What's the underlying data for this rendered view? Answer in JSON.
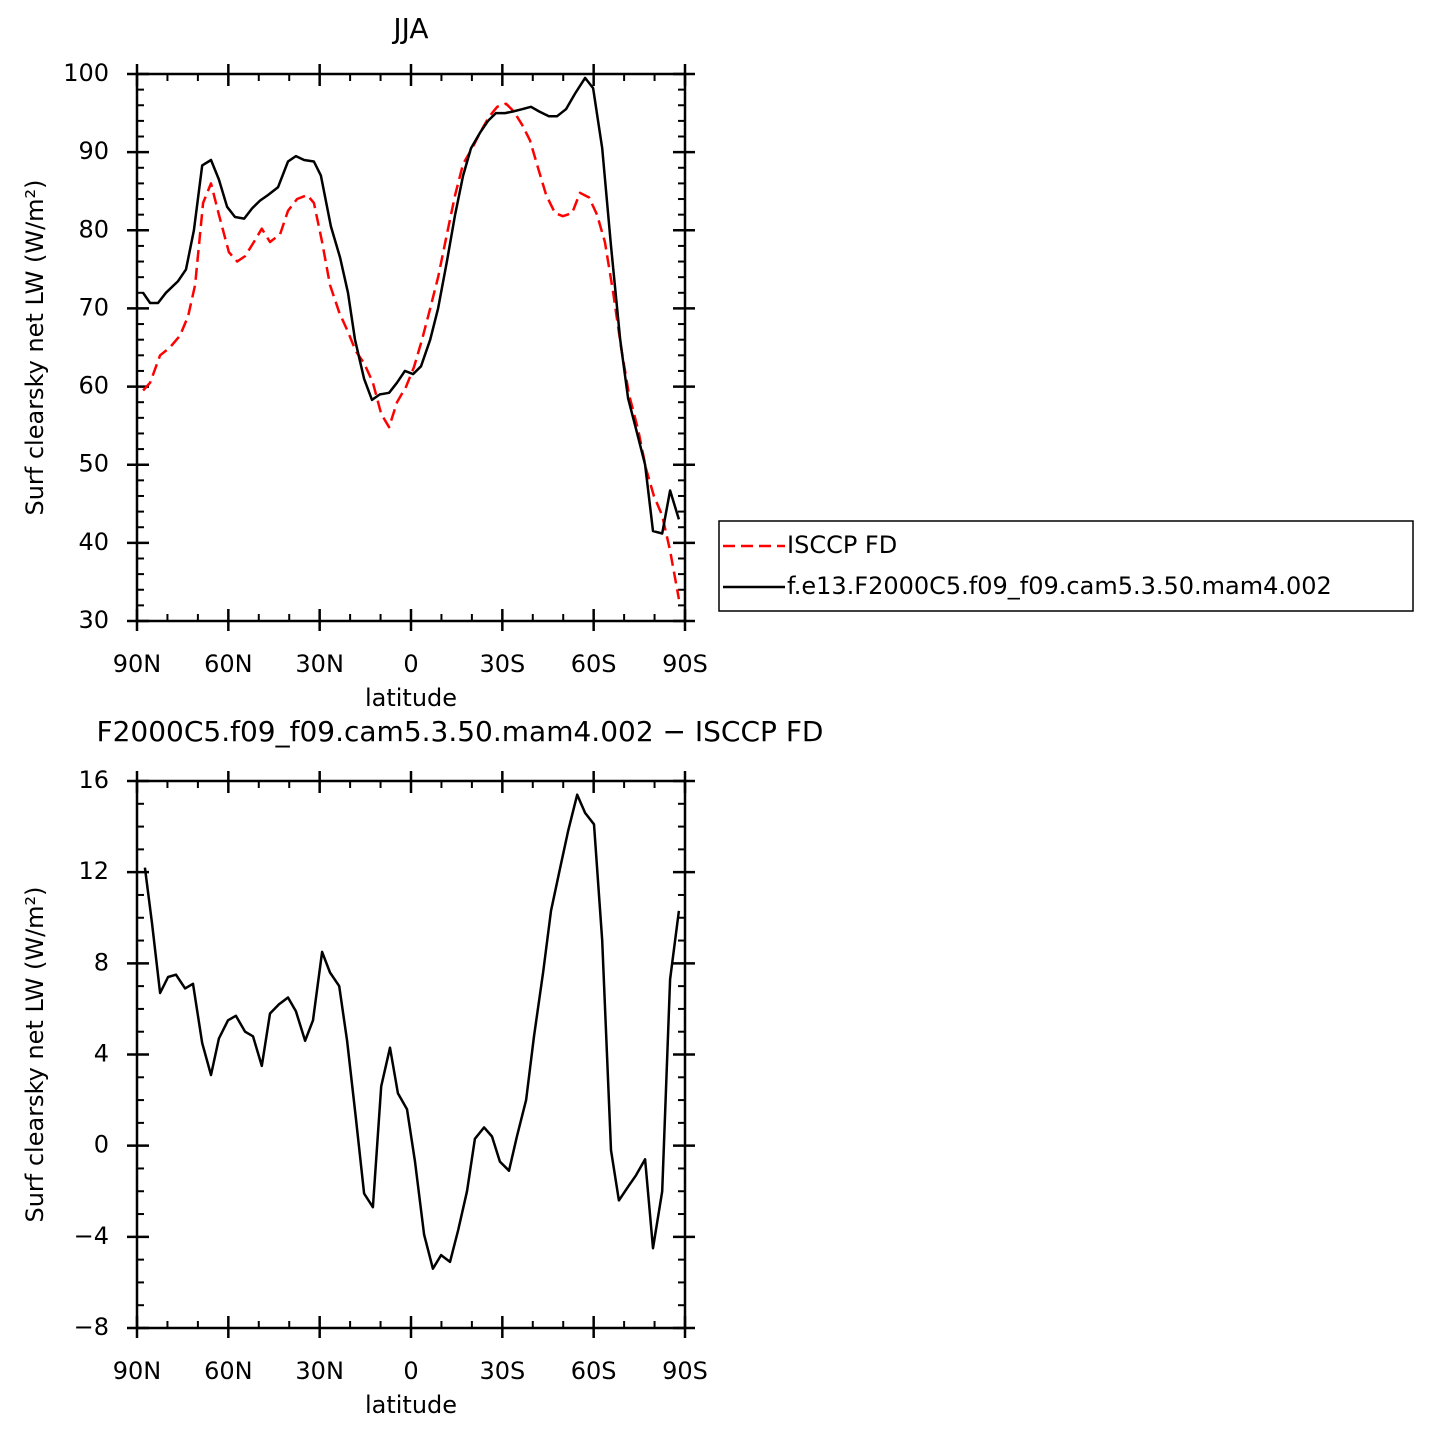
{
  "chart_data": [
    {
      "type": "line",
      "title": "JJA",
      "xlabel": "latitude",
      "ylabel": "Surf clearsky net LW (W/m²)",
      "xlim": [
        90,
        -90
      ],
      "xticks": [
        {
          "value": 90,
          "label": "90N"
        },
        {
          "value": 60,
          "label": "60N"
        },
        {
          "value": 30,
          "label": "30N"
        },
        0,
        {
          "value": -30,
          "label": "30S"
        },
        {
          "value": -60,
          "label": "60S"
        },
        {
          "value": -90,
          "label": "90S"
        }
      ],
      "ylim": [
        30,
        100
      ],
      "yticks": [
        30,
        40,
        50,
        60,
        70,
        80,
        90,
        100
      ],
      "legend_position": "right",
      "series": [
        {
          "name": "ISCCP FD",
          "color": "#ff0000",
          "dash": true,
          "x": [
            88.0,
            85.7,
            82.4,
            79.2,
            75.9,
            73.2,
            70.9,
            68.3,
            65.7,
            63.1,
            59.8,
            57.1,
            54.5,
            51.6,
            49.0,
            46.3,
            43.0,
            40.4,
            37.4,
            34.1,
            31.9,
            29.2,
            26.6,
            23.6,
            20.7,
            18.1,
            15.4,
            12.5,
            9.8,
            7.2,
            4.6,
            1.6,
            -1.0,
            -3.6,
            -6.3,
            -8.9,
            -11.8,
            -14.5,
            -17.1,
            -20.1,
            -22.7,
            -25.6,
            -28.3,
            -31.2,
            -33.8,
            -36.5,
            -39.1,
            -41.7,
            -44.4,
            -47.3,
            -49.9,
            -52.9,
            -55.5,
            -58.5,
            -61.1,
            -63.7,
            -66.4,
            -69.0,
            -71.6,
            -74.6,
            -77.2,
            -79.8,
            -82.5,
            -85.1,
            -88.0
          ],
          "values": [
            59.5,
            60.5,
            64,
            65,
            66.5,
            69,
            73,
            83.5,
            86,
            82,
            77.2,
            76,
            76.7,
            78.5,
            80.2,
            78.5,
            79.5,
            82.5,
            84,
            84.5,
            83.5,
            78.5,
            73,
            69.5,
            67,
            64.5,
            63,
            60.5,
            56.5,
            54.8,
            58,
            60,
            62.5,
            66,
            70,
            74,
            79.5,
            84.5,
            88.5,
            90.5,
            92.5,
            94.5,
            95.8,
            96.2,
            95.2,
            93.5,
            91.5,
            88,
            84.5,
            82.2,
            81.8,
            82.2,
            84.8,
            84.2,
            82,
            78.5,
            72,
            65,
            59,
            54.5,
            49.5,
            46,
            43.5,
            39,
            32.8
          ]
        },
        {
          "name": "f.e13.F2000C5.f09_f09.cam5.3.50.mam4.002",
          "color": "#000000",
          "dash": false,
          "x": [
            88.0,
            85.7,
            83.1,
            80.5,
            76.5,
            73.9,
            71.3,
            68.6,
            65.7,
            63.1,
            60.4,
            57.8,
            54.8,
            52.2,
            49.6,
            47.0,
            43.7,
            40.4,
            37.8,
            35.1,
            31.9,
            29.6,
            26.3,
            23.3,
            20.7,
            18.4,
            15.4,
            12.8,
            10.2,
            7.2,
            4.6,
            2.0,
            -0.7,
            -3.3,
            -6.3,
            -8.9,
            -11.8,
            -14.5,
            -17.1,
            -19.7,
            -22.7,
            -25.3,
            -27.9,
            -30.9,
            -33.5,
            -36.5,
            -39.4,
            -42.1,
            -45.3,
            -48.0,
            -50.9,
            -53.9,
            -57.2,
            -59.8,
            -62.8,
            -65.7,
            -68.7,
            -71.3,
            -74.3,
            -76.9,
            -79.5,
            -82.5,
            -85.1,
            -88.0
          ],
          "values": [
            72,
            70.7,
            70.7,
            72,
            73.5,
            75,
            80,
            88.3,
            89,
            86.5,
            83,
            81.7,
            81.5,
            82.8,
            83.8,
            84.5,
            85.5,
            88.8,
            89.5,
            89,
            88.8,
            87,
            80.5,
            76.5,
            72,
            66,
            61,
            58.3,
            59,
            59.2,
            60.5,
            62,
            61.6,
            62.6,
            66,
            70,
            76,
            82,
            87,
            90.5,
            92.5,
            94,
            95,
            95,
            95.2,
            95.5,
            95.8,
            95.2,
            94.6,
            94.6,
            95.5,
            97.5,
            99.5,
            98.2,
            90.5,
            78,
            66,
            58.5,
            54,
            50,
            41.5,
            41.2,
            46.7,
            43
          ]
        }
      ]
    },
    {
      "type": "line",
      "title": "F2000C5.f09_f09.cam5.3.50.mam4.002 − ISCCP FD",
      "xlabel": "latitude",
      "ylabel": "Surf clearsky net LW (W/m²)",
      "xlim": [
        90,
        -90
      ],
      "xticks": [
        {
          "value": 90,
          "label": "90N"
        },
        {
          "value": 60,
          "label": "60N"
        },
        {
          "value": 30,
          "label": "30N"
        },
        0,
        {
          "value": -30,
          "label": "30S"
        },
        {
          "value": -60,
          "label": "60S"
        },
        {
          "value": -90,
          "label": "90S"
        }
      ],
      "ylim": [
        -8,
        16
      ],
      "yticks": [
        {
          "value": -8,
          "label": "−8"
        },
        {
          "value": -4,
          "label": "−4"
        },
        0,
        4,
        8,
        12,
        16
      ],
      "series": [
        {
          "color": "#000000",
          "dash": false,
          "x": [
            87.4,
            85.1,
            82.4,
            79.8,
            77.2,
            74.2,
            71.6,
            68.6,
            65.7,
            63.1,
            60.1,
            57.5,
            54.5,
            51.9,
            49.0,
            46.3,
            43.4,
            40.4,
            37.8,
            34.8,
            32.2,
            29.2,
            26.6,
            23.6,
            21.0,
            18.1,
            15.4,
            12.5,
            9.8,
            6.9,
            4.3,
            1.3,
            -1.3,
            -4.3,
            -7.2,
            -9.9,
            -12.8,
            -15.5,
            -18.4,
            -21.0,
            -24.0,
            -26.6,
            -29.2,
            -32.2,
            -34.8,
            -37.8,
            -40.4,
            -43.4,
            -46.0,
            -49.0,
            -51.6,
            -54.6,
            -57.2,
            -60.1,
            -62.8,
            -65.7,
            -68.3,
            -71.3,
            -73.9,
            -76.9,
            -79.5,
            -82.5,
            -85.1,
            -88.0
          ],
          "values": [
            12.2,
            9.8,
            6.7,
            7.4,
            7.5,
            6.9,
            7.1,
            4.5,
            3.1,
            4.7,
            5.5,
            5.7,
            5.0,
            4.8,
            3.5,
            5.8,
            6.2,
            6.5,
            5.9,
            4.6,
            5.5,
            8.5,
            7.6,
            7.0,
            4.6,
            1.2,
            -2.1,
            -2.7,
            2.6,
            4.3,
            2.3,
            1.6,
            -0.7,
            -3.9,
            -5.4,
            -4.8,
            -5.1,
            -3.7,
            -2.0,
            0.3,
            0.8,
            0.4,
            -0.7,
            -1.1,
            0.4,
            2.0,
            4.8,
            7.6,
            10.3,
            12.2,
            13.8,
            15.4,
            14.6,
            14.1,
            9.0,
            -0.2,
            -2.4,
            -1.8,
            -1.3,
            -0.6,
            -4.5,
            -2.0,
            7.3,
            10.3
          ]
        }
      ]
    }
  ]
}
